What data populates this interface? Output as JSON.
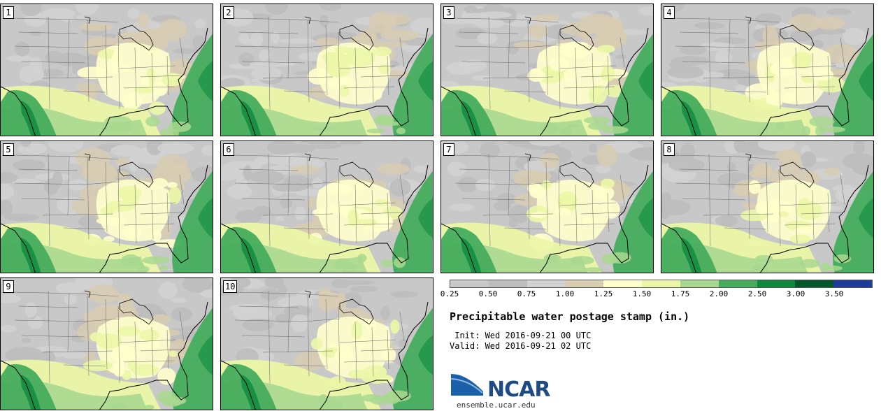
{
  "panels": [
    {
      "label": "1"
    },
    {
      "label": "2"
    },
    {
      "label": "3"
    },
    {
      "label": "4"
    },
    {
      "label": "5"
    },
    {
      "label": "6"
    },
    {
      "label": "7"
    },
    {
      "label": "8"
    },
    {
      "label": "9"
    },
    {
      "label": "10"
    }
  ],
  "legend": {
    "colors": [
      "#c8c8c8",
      "#bdbdbd",
      "#d2d2d2",
      "#d8ccb2",
      "#ffffcc",
      "#ebf7a7",
      "#a8d88f",
      "#46ad5d",
      "#0d8a3e",
      "#05582c",
      "#1e3c9c"
    ],
    "labels": [
      "0.25",
      "0.50",
      "0.75",
      "1.00",
      "1.25",
      "1.50",
      "1.75",
      "2.00",
      "2.50",
      "3.00",
      "3.50"
    ]
  },
  "title": "Precipitable water postage stamp (in.)",
  "init": " Init: Wed 2016-09-21 00 UTC",
  "valid": "Valid: Wed 2016-09-21 02 UTC",
  "logo": {
    "brand": "NCAR",
    "url": "ensemble.ucar.edu"
  }
}
